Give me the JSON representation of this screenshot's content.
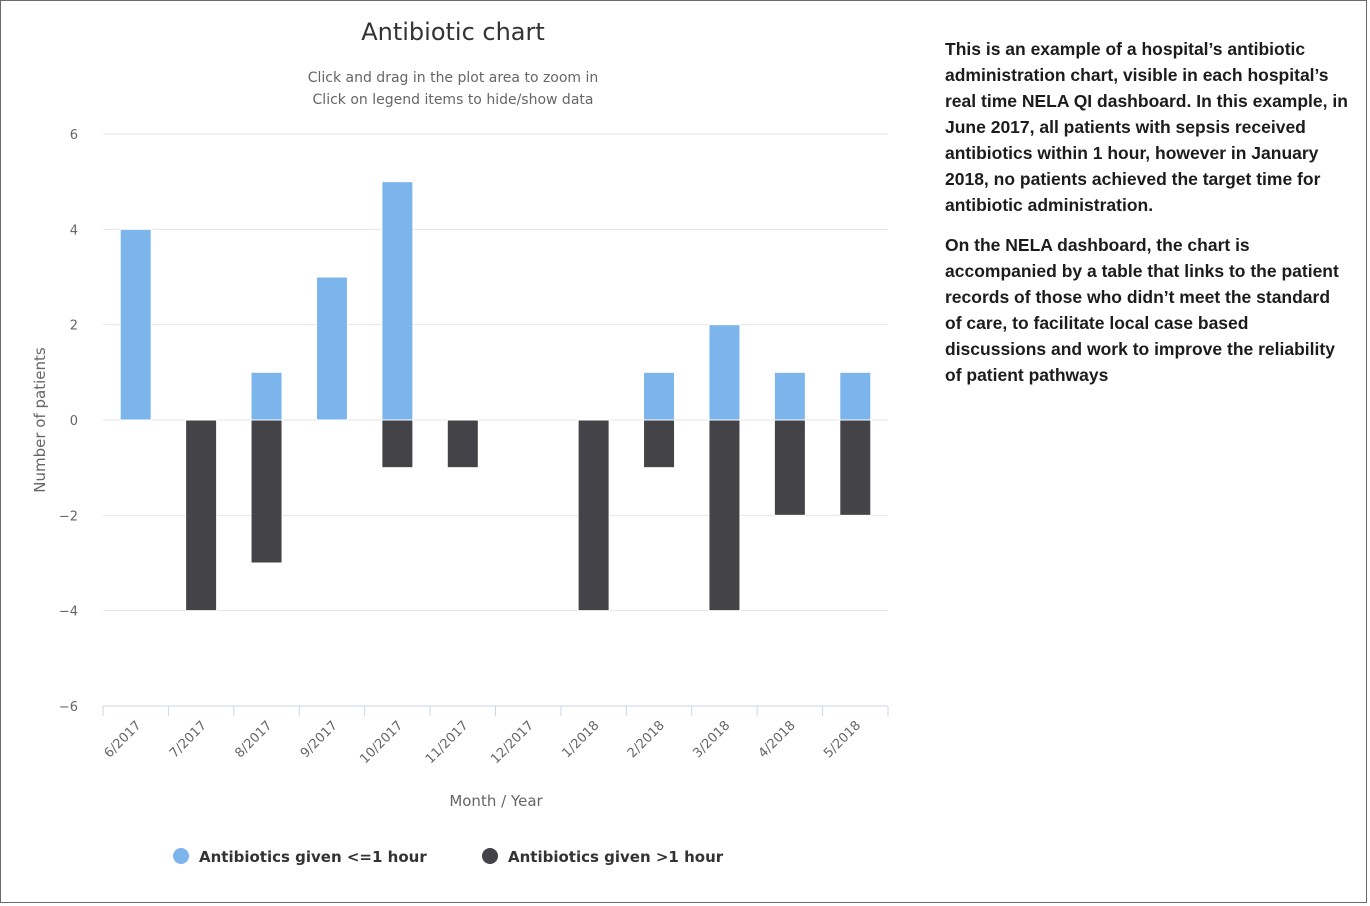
{
  "chart_data": {
    "type": "bar",
    "title": "Antibiotic chart",
    "subtitle": [
      "Click and drag in the plot area to zoom in",
      "Click on legend items to hide/show data"
    ],
    "xlabel": "Month / Year",
    "ylabel": "Number of patients",
    "categories": [
      "6/2017",
      "7/2017",
      "8/2017",
      "9/2017",
      "10/2017",
      "11/2017",
      "12/2017",
      "1/2018",
      "2/2018",
      "3/2018",
      "4/2018",
      "5/2018"
    ],
    "series": [
      {
        "name": "Antibiotics given <=1 hour",
        "color": "#7cb5ec",
        "values": [
          4,
          0,
          1,
          3,
          5,
          0,
          0,
          0,
          1,
          2,
          1,
          1
        ]
      },
      {
        "name": "Antibiotics given >1 hour",
        "color": "#434348",
        "values": [
          0,
          -4,
          -3,
          0,
          -1,
          -1,
          0,
          -4,
          -1,
          -4,
          -2,
          -2
        ]
      }
    ],
    "ylim": [
      -6,
      6
    ],
    "yticks": [
      -6,
      -4,
      -2,
      0,
      2,
      4,
      6
    ],
    "grid": true,
    "legend_position": "bottom"
  },
  "caption": {
    "paragraphs": [
      "This is an example of a hospital’s antibiotic administration chart, visible in each hospital’s real time NELA QI dashboard. In this example, in June 2017, all patients with sepsis received antibiotics within 1 hour, however in January 2018, no patients achieved the target time for antibiotic administration.",
      "On the NELA dashboard, the chart is accompanied by a table that links to the patient records of those who didn’t meet the standard of care, to facilitate local case based discussions and work to improve the reliability of patient pathways"
    ]
  }
}
